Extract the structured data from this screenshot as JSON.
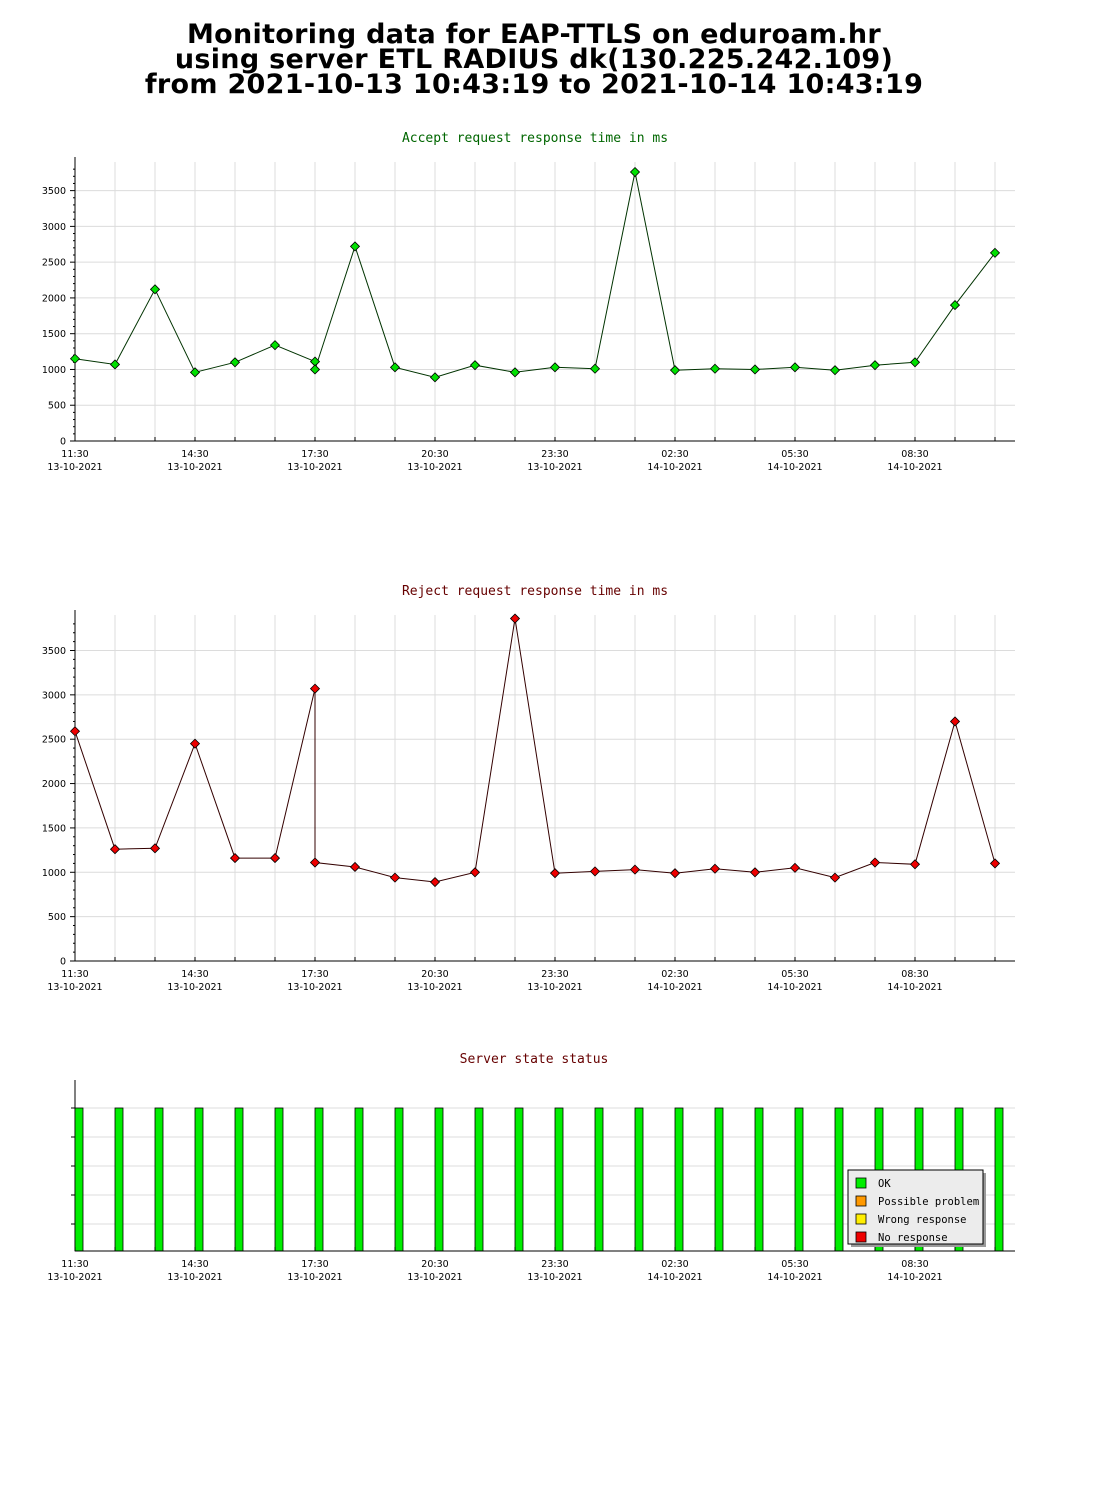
{
  "page": {
    "title_lines": [
      "Monitoring data for EAP-TTLS on eduroam.hr",
      "using server ETL RADIUS dk(130.225.242.109)",
      "from 2021-10-13  10:43:19 to 2021-10-14  10:43:19"
    ]
  },
  "chart_data": [
    {
      "type": "line",
      "title": "Accept request response time in ms",
      "title_color": "#006600",
      "line_color": "#003300",
      "marker_color": "#00e000",
      "x_labels": [
        {
          "time": "11:30",
          "date": "13-10-2021"
        },
        {
          "time": "14:30",
          "date": "13-10-2021"
        },
        {
          "time": "17:30",
          "date": "13-10-2021"
        },
        {
          "time": "20:30",
          "date": "13-10-2021"
        },
        {
          "time": "23:30",
          "date": "13-10-2021"
        },
        {
          "time": "02:30",
          "date": "14-10-2021"
        },
        {
          "time": "05:30",
          "date": "14-10-2021"
        },
        {
          "time": "08:30",
          "date": "14-10-2021"
        }
      ],
      "yticks": [
        0,
        500,
        1000,
        1500,
        2000,
        2500,
        3000,
        3500
      ],
      "ylim": [
        0,
        3900
      ],
      "x": [
        0,
        1,
        2,
        3,
        4,
        5,
        6,
        6,
        7,
        8,
        9,
        10,
        11,
        12,
        13,
        14,
        15,
        16,
        17,
        18,
        19,
        20,
        21,
        22,
        23
      ],
      "values": [
        1150,
        1070,
        2120,
        960,
        1100,
        1340,
        1110,
        1000,
        2720,
        1030,
        890,
        1060,
        960,
        1030,
        1010,
        3760,
        990,
        1010,
        1000,
        1030,
        990,
        1060,
        1100,
        1900,
        2630
      ]
    },
    {
      "type": "line",
      "title": "Reject request response time in ms",
      "title_color": "#660000",
      "line_color": "#330000",
      "marker_color": "#ee0000",
      "x_labels": [
        {
          "time": "11:30",
          "date": "13-10-2021"
        },
        {
          "time": "14:30",
          "date": "13-10-2021"
        },
        {
          "time": "17:30",
          "date": "13-10-2021"
        },
        {
          "time": "20:30",
          "date": "13-10-2021"
        },
        {
          "time": "23:30",
          "date": "13-10-2021"
        },
        {
          "time": "02:30",
          "date": "14-10-2021"
        },
        {
          "time": "05:30",
          "date": "14-10-2021"
        },
        {
          "time": "08:30",
          "date": "14-10-2021"
        }
      ],
      "yticks": [
        0,
        500,
        1000,
        1500,
        2000,
        2500,
        3000,
        3500
      ],
      "ylim": [
        0,
        3900
      ],
      "x": [
        0,
        1,
        2,
        3,
        4,
        5,
        6,
        6,
        7,
        8,
        9,
        10,
        11,
        12,
        13,
        14,
        15,
        16,
        17,
        18,
        19,
        20,
        21,
        22,
        23
      ],
      "values": [
        2590,
        1260,
        1270,
        2450,
        1160,
        1160,
        3070,
        1110,
        1060,
        940,
        890,
        1000,
        3860,
        990,
        1010,
        1030,
        990,
        1040,
        1000,
        1050,
        940,
        1110,
        1090,
        2700,
        1100
      ]
    },
    {
      "type": "bar",
      "title": "Server state status",
      "title_color": "#660000",
      "x_labels": [
        {
          "time": "11:30",
          "date": "13-10-2021"
        },
        {
          "time": "14:30",
          "date": "13-10-2021"
        },
        {
          "time": "17:30",
          "date": "13-10-2021"
        },
        {
          "time": "20:30",
          "date": "13-10-2021"
        },
        {
          "time": "23:30",
          "date": "13-10-2021"
        },
        {
          "time": "02:30",
          "date": "14-10-2021"
        },
        {
          "time": "05:30",
          "date": "14-10-2021"
        },
        {
          "time": "08:30",
          "date": "14-10-2021"
        }
      ],
      "statuses": [
        "OK",
        "OK",
        "OK",
        "OK",
        "OK",
        "OK",
        "OK",
        "OK",
        "OK",
        "OK",
        "OK",
        "OK",
        "OK",
        "OK",
        "OK",
        "OK",
        "OK",
        "OK",
        "OK",
        "OK",
        "OK",
        "OK",
        "OK",
        "OK"
      ],
      "legend": [
        {
          "label": "OK",
          "color": "#00ee00"
        },
        {
          "label": "Possible problem",
          "color": "#ff9900"
        },
        {
          "label": "Wrong response",
          "color": "#ffee00"
        },
        {
          "label": "No response",
          "color": "#ee0000"
        }
      ],
      "legend_position": "bottom-right"
    }
  ]
}
